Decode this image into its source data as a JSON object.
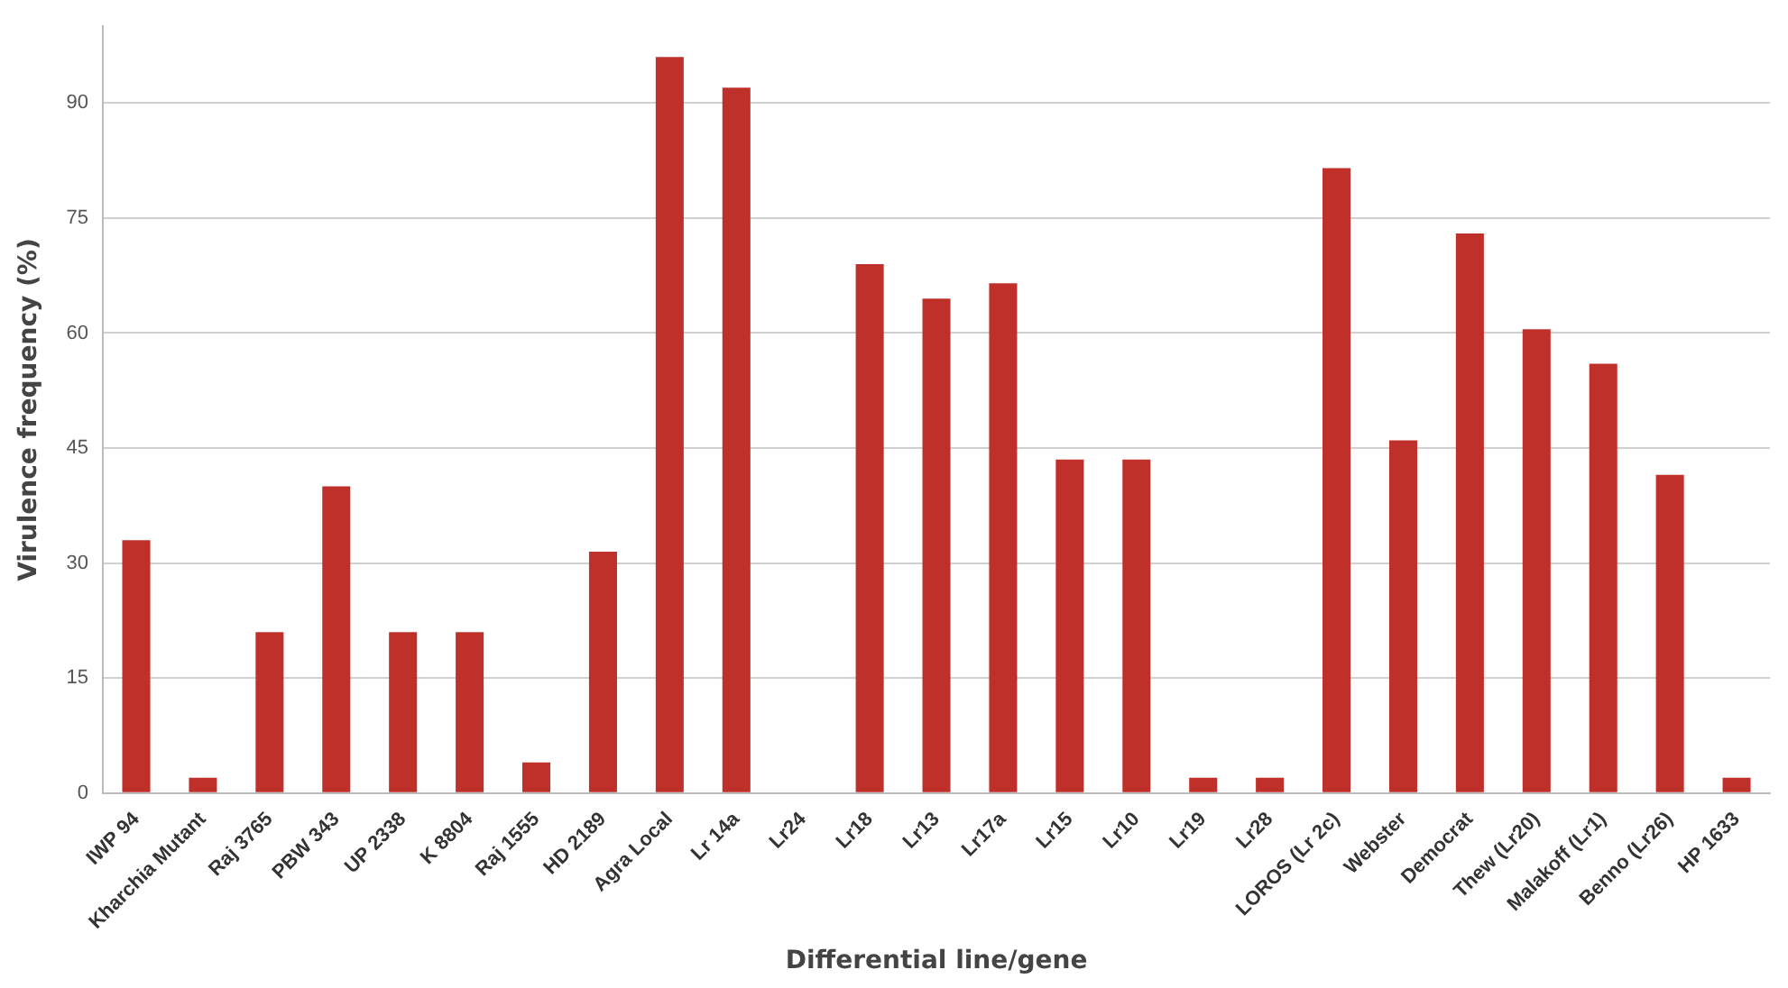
{
  "chart_data": {
    "type": "bar",
    "xlabel": "Differential line/gene",
    "ylabel": "Virulence frequency (%)",
    "categories": [
      "IWP 94",
      "Kharchia Mutant",
      "Raj 3765",
      "PBW 343",
      "UP 2338",
      "K 8804",
      "Raj 1555",
      "HD 2189",
      "Agra Local",
      "Lr 14a",
      "Lr24",
      "Lr18",
      "Lr13",
      "Lr17a",
      "Lr15",
      "Lr10",
      "Lr19",
      "Lr28",
      "LOROS (Lr 2c)",
      "Webster",
      "Democrat",
      "Thew (Lr20)",
      "Malakoff (Lr1)",
      "Benno (Lr26)",
      "HP 1633"
    ],
    "values": [
      33,
      2,
      21,
      40,
      21,
      21,
      4,
      31.5,
      96,
      92,
      0,
      69,
      64.5,
      66.5,
      43.5,
      43.5,
      2,
      2,
      81.5,
      46,
      73,
      60.5,
      56,
      41.5,
      2
    ],
    "color": "#c0302a",
    "ylim": [
      0,
      100
    ],
    "yticks": [
      0,
      15,
      30,
      45,
      60,
      75,
      90
    ],
    "grid": "y"
  }
}
